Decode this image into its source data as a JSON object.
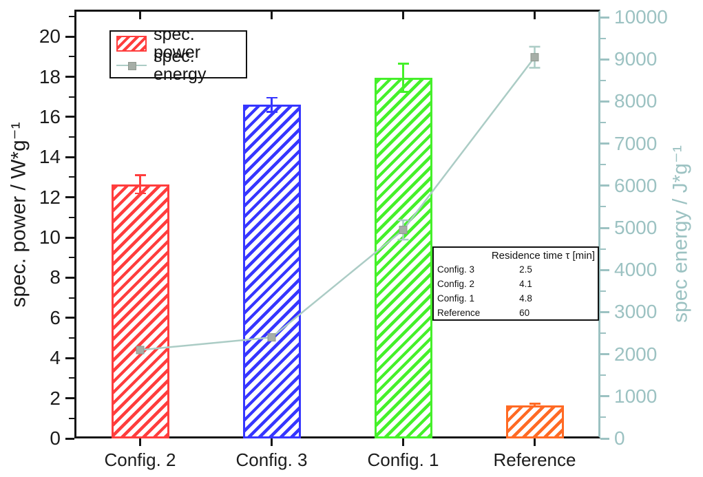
{
  "colors": {
    "frame_black": "#151515",
    "right_axis_teal": "#9cc2c2",
    "energy_line": "#abccc5",
    "energy_marker_fill": "#a6aea7",
    "energy_marker_edge": "#8f988f",
    "text_black": "#1c1c1c",
    "bar_red": "#ff3d3d",
    "bar_blue": "#3636ff",
    "bar_green": "#45f02a",
    "bar_orange": "#ff6a24"
  },
  "chart_data": {
    "type": "bar+line",
    "categories": [
      "Config. 2",
      "Config. 3",
      "Config. 1",
      "Reference"
    ],
    "series": [
      {
        "name": "spec. power",
        "type": "bar",
        "axis": "left",
        "values": [
          12.65,
          16.6,
          17.95,
          1.65
        ],
        "errors": [
          0.45,
          0.35,
          0.7,
          0.08
        ],
        "bar_colors": [
          "#ff3d3d",
          "#3636ff",
          "#45f02a",
          "#ff6a24"
        ]
      },
      {
        "name": "spec. energy",
        "type": "line",
        "axis": "right",
        "values": [
          2100,
          2400,
          4950,
          9050
        ],
        "errors": [
          0,
          0,
          230,
          250
        ],
        "line_color": "#abccc5",
        "marker_fill": "#a6aea7",
        "marker_edge": "#8f988f"
      }
    ],
    "left_axis": {
      "title": "spec. power / W*g⁻¹",
      "min": 0,
      "max": 21.34,
      "major_ticks": [
        0,
        2,
        4,
        6,
        8,
        10,
        12,
        14,
        16,
        18,
        20
      ],
      "minor_step": 1
    },
    "right_axis": {
      "title": "spec energy / J*g⁻¹",
      "min": 0,
      "max": 10180,
      "major_ticks": [
        0,
        1000,
        2000,
        3000,
        4000,
        5000,
        6000,
        7000,
        8000,
        9000,
        10000
      ],
      "minor_step": 500
    },
    "legend": [
      "spec. power",
      "spec. energy"
    ],
    "grid": "off",
    "legend_position": "top-left-inside"
  },
  "inset_table": {
    "title": "Residence time τ [min]",
    "rows": [
      {
        "label": "Config. 3",
        "value": "2.5"
      },
      {
        "label": "Config. 2",
        "value": "4.1"
      },
      {
        "label": "Config. 1",
        "value": "4.8"
      },
      {
        "label": "Reference",
        "value": "60"
      }
    ]
  }
}
